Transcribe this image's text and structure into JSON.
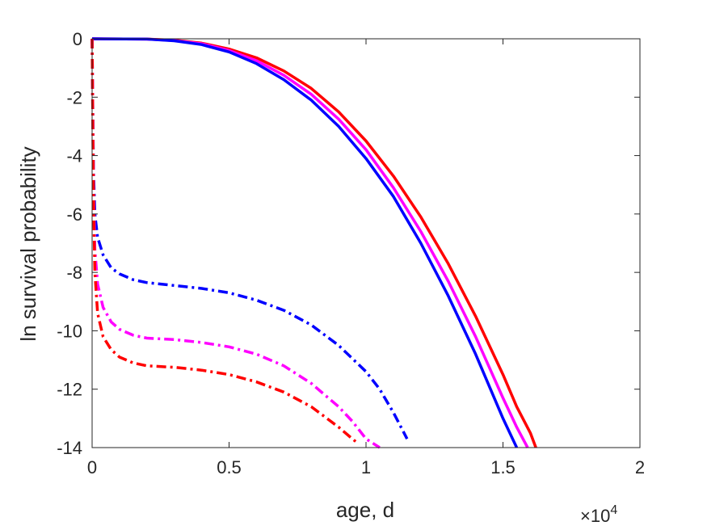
{
  "chart_data": {
    "type": "line",
    "xlabel": "age, d",
    "ylabel": "ln survival probability",
    "x_exponent_multiplier": "×10",
    "x_exponent_power": "4",
    "xlim": [
      0,
      2
    ],
    "ylim": [
      -14,
      0
    ],
    "xticks": [
      "0",
      "0.5",
      "1",
      "1.5",
      "2"
    ],
    "yticks": [
      "0",
      "-2",
      "-4",
      "-6",
      "-8",
      "-10",
      "-12",
      "-14"
    ],
    "grid": false,
    "legend": "none",
    "series": [
      {
        "color": "#ff0000",
        "style": "solid",
        "x": [
          0.0,
          0.2,
          0.3,
          0.4,
          0.5,
          0.6,
          0.7,
          0.8,
          0.9,
          1.0,
          1.1,
          1.2,
          1.3,
          1.4,
          1.5,
          1.55,
          1.6,
          1.62
        ],
        "y": [
          0.0,
          -0.01,
          -0.05,
          -0.15,
          -0.35,
          -0.65,
          -1.1,
          -1.7,
          -2.5,
          -3.5,
          -4.7,
          -6.1,
          -7.7,
          -9.5,
          -11.5,
          -12.6,
          -13.5,
          -14.0
        ]
      },
      {
        "color": "#ff00ff",
        "style": "solid",
        "x": [
          0.0,
          0.2,
          0.3,
          0.4,
          0.5,
          0.6,
          0.7,
          0.8,
          0.9,
          1.0,
          1.1,
          1.2,
          1.3,
          1.4,
          1.5,
          1.55,
          1.59
        ],
        "y": [
          0.0,
          -0.01,
          -0.06,
          -0.17,
          -0.4,
          -0.75,
          -1.25,
          -1.9,
          -2.75,
          -3.8,
          -5.1,
          -6.6,
          -8.3,
          -10.2,
          -12.3,
          -13.3,
          -14.0
        ]
      },
      {
        "color": "#0000ff",
        "style": "solid",
        "x": [
          0.0,
          0.2,
          0.3,
          0.4,
          0.5,
          0.6,
          0.7,
          0.8,
          0.9,
          1.0,
          1.1,
          1.2,
          1.3,
          1.4,
          1.5,
          1.55
        ],
        "y": [
          0.0,
          -0.01,
          -0.07,
          -0.2,
          -0.45,
          -0.85,
          -1.4,
          -2.1,
          -3.0,
          -4.1,
          -5.4,
          -7.0,
          -8.8,
          -10.8,
          -13.0,
          -14.0
        ]
      },
      {
        "color": "#0000ff",
        "style": "dashdot",
        "x": [
          0.0,
          0.002,
          0.005,
          0.01,
          0.02,
          0.04,
          0.07,
          0.1,
          0.15,
          0.2,
          0.3,
          0.4,
          0.5,
          0.6,
          0.7,
          0.8,
          0.9,
          1.0,
          1.05,
          1.1,
          1.15
        ],
        "y": [
          0.0,
          -2.0,
          -4.5,
          -6.0,
          -6.8,
          -7.4,
          -7.85,
          -8.05,
          -8.25,
          -8.35,
          -8.45,
          -8.55,
          -8.7,
          -8.95,
          -9.3,
          -9.8,
          -10.5,
          -11.4,
          -12.0,
          -12.8,
          -13.7
        ]
      },
      {
        "color": "#ff00ff",
        "style": "dashdot",
        "x": [
          0.0,
          0.003,
          0.006,
          0.01,
          0.02,
          0.04,
          0.07,
          0.1,
          0.15,
          0.2,
          0.3,
          0.4,
          0.5,
          0.6,
          0.7,
          0.8,
          0.9,
          0.95,
          1.0,
          1.05
        ],
        "y": [
          0.0,
          -3.0,
          -5.5,
          -7.2,
          -8.4,
          -9.2,
          -9.7,
          -9.95,
          -10.15,
          -10.25,
          -10.3,
          -10.4,
          -10.55,
          -10.8,
          -11.2,
          -11.8,
          -12.6,
          -13.1,
          -13.7,
          -14.0
        ]
      },
      {
        "color": "#ff0000",
        "style": "dashdot",
        "x": [
          0.0,
          0.003,
          0.006,
          0.01,
          0.02,
          0.04,
          0.07,
          0.1,
          0.15,
          0.2,
          0.3,
          0.4,
          0.5,
          0.6,
          0.7,
          0.8,
          0.85,
          0.9,
          0.95,
          0.97
        ],
        "y": [
          0.0,
          -3.5,
          -6.0,
          -8.0,
          -9.4,
          -10.2,
          -10.65,
          -10.9,
          -11.1,
          -11.2,
          -11.25,
          -11.35,
          -11.5,
          -11.75,
          -12.1,
          -12.6,
          -12.95,
          -13.3,
          -13.7,
          -13.85
        ]
      }
    ]
  }
}
